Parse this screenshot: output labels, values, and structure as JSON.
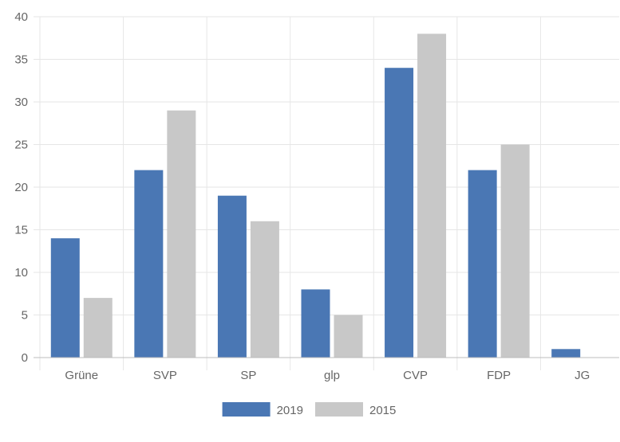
{
  "chart_data": {
    "type": "bar",
    "title": "",
    "xlabel": "",
    "ylabel": "",
    "categories": [
      "Grüne",
      "SVP",
      "SP",
      "glp",
      "CVP",
      "FDP",
      "JG"
    ],
    "series": [
      {
        "name": "2019",
        "values": [
          14,
          22,
          19,
          8,
          34,
          22,
          1
        ],
        "color": "#4a77b4"
      },
      {
        "name": "2015",
        "values": [
          7,
          29,
          16,
          5,
          38,
          25,
          0
        ],
        "color": "#c8c8c8"
      }
    ],
    "ylim": [
      0,
      40
    ],
    "yticks": [
      0,
      5,
      10,
      15,
      20,
      25,
      30,
      35,
      40
    ],
    "grid": true,
    "legend_position": "bottom"
  }
}
